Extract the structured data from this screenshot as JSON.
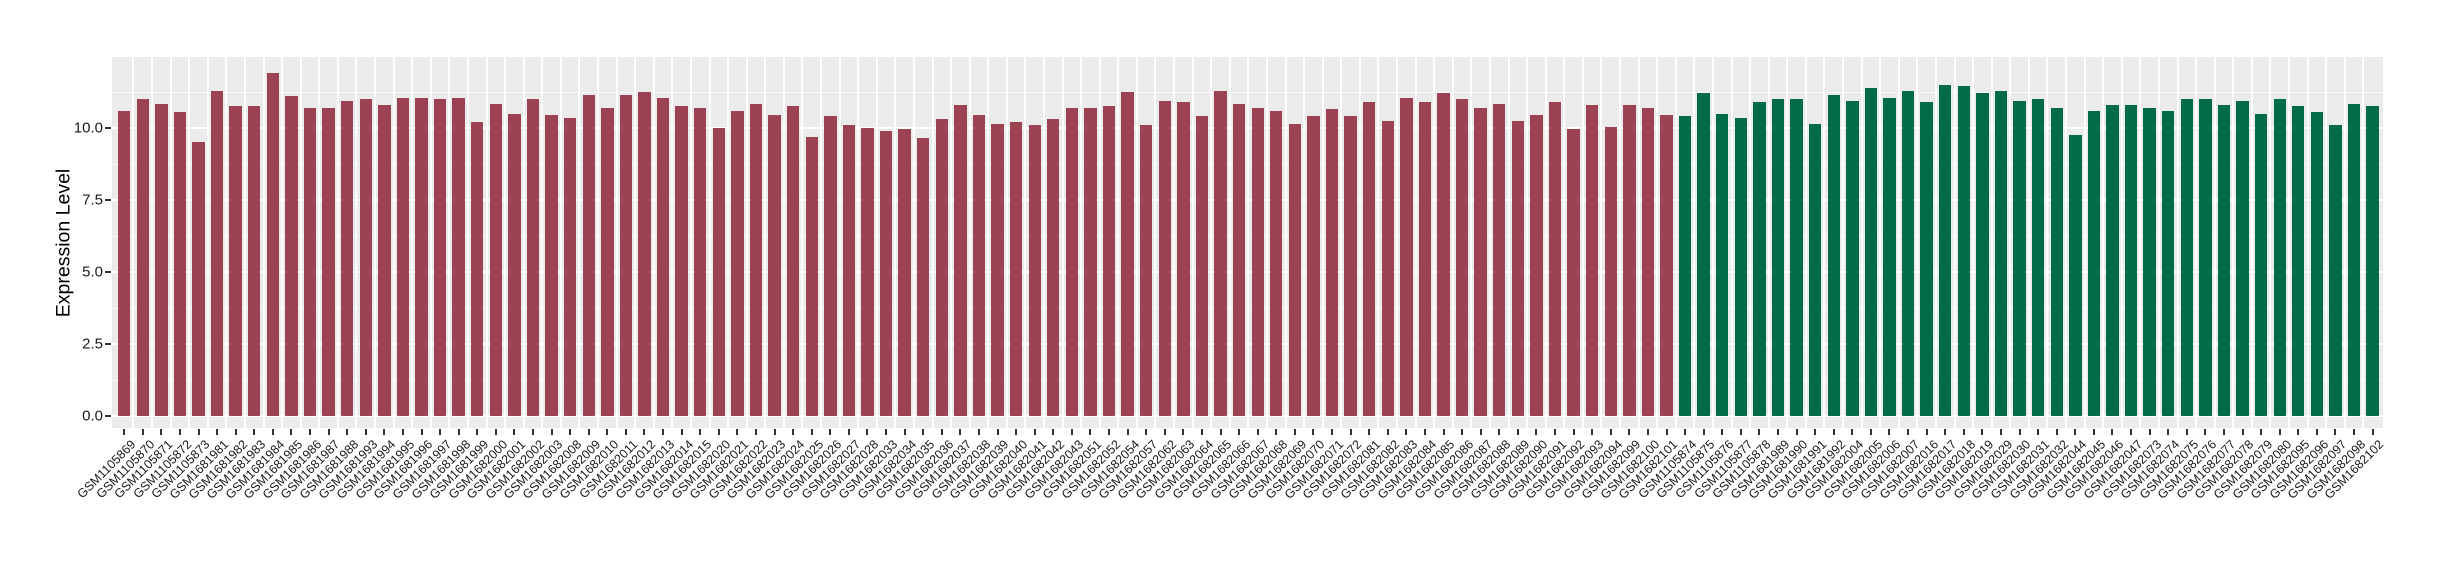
{
  "figure": {
    "kind": "expression-bar-plot",
    "background": "#ffffff",
    "panel_background": "#EBEBEB",
    "gridline_color": "#ffffff",
    "tick_color": "#333333",
    "text_color": "#1a1a1a"
  },
  "chart_data": {
    "type": "bar",
    "title": "",
    "xlabel": "",
    "ylabel": "Expression Level",
    "ylim": [
      0,
      12.5
    ],
    "grid": "on",
    "legend": "none",
    "yticks": [
      0,
      2.5,
      5.0,
      7.5,
      10.0
    ],
    "ytick_labels": [
      "0.0",
      "2.5",
      "5.0",
      "7.5",
      "10.0"
    ],
    "yticks_minor": [
      1.25,
      3.75,
      6.25,
      8.75,
      11.25,
      12.5
    ],
    "x_tick_label_angle_deg": 45,
    "series": [
      {
        "name": "maroon-group",
        "color": "#9B4352",
        "categories": [
          "GSM1105869",
          "GSM1105870",
          "GSM1105871",
          "GSM1105872",
          "GSM1105873",
          "GSM1681981",
          "GSM1681982",
          "GSM1681983",
          "GSM1681984",
          "GSM1681985",
          "GSM1681986",
          "GSM1681987",
          "GSM1681988",
          "GSM1681993",
          "GSM1681994",
          "GSM1681995",
          "GSM1681996",
          "GSM1681997",
          "GSM1681998",
          "GSM1681999",
          "GSM1682000",
          "GSM1682001",
          "GSM1682002",
          "GSM1682003",
          "GSM1682008",
          "GSM1682009",
          "GSM1682010",
          "GSM1682011",
          "GSM1682012",
          "GSM1682013",
          "GSM1682014",
          "GSM1682015",
          "GSM1682020",
          "GSM1682021",
          "GSM1682022",
          "GSM1682023",
          "GSM1682024",
          "GSM1682025",
          "GSM1682026",
          "GSM1682027",
          "GSM1682028",
          "GSM1682033",
          "GSM1682034",
          "GSM1682035",
          "GSM1682036",
          "GSM1682037",
          "GSM1682038",
          "GSM1682039",
          "GSM1682040",
          "GSM1682041",
          "GSM1682042",
          "GSM1682043",
          "GSM1682051",
          "GSM1682052",
          "GSM1682054",
          "GSM1682057",
          "GSM1682062",
          "GSM1682063",
          "GSM1682064",
          "GSM1682065",
          "GSM1682066",
          "GSM1682067",
          "GSM1682068",
          "GSM1682069",
          "GSM1682070",
          "GSM1682071",
          "GSM1682072",
          "GSM1682081",
          "GSM1682082",
          "GSM1682083",
          "GSM1682084",
          "GSM1682085",
          "GSM1682086",
          "GSM1682087",
          "GSM1682088",
          "GSM1682089",
          "GSM1682090",
          "GSM1682091",
          "GSM1682092",
          "GSM1682093",
          "GSM1682094",
          "GSM1682099",
          "GSM1682100",
          "GSM1682101"
        ],
        "values": [
          10.6,
          11.0,
          10.85,
          10.55,
          9.5,
          11.3,
          10.75,
          10.75,
          11.9,
          11.1,
          10.7,
          10.7,
          10.95,
          11.0,
          10.8,
          11.05,
          11.05,
          11.0,
          11.05,
          10.2,
          10.85,
          10.5,
          11.0,
          10.45,
          10.35,
          11.15,
          10.7,
          11.15,
          11.25,
          11.05,
          10.75,
          10.7,
          10.0,
          10.6,
          10.85,
          10.45,
          10.75,
          9.7,
          10.4,
          10.1,
          10.0,
          9.9,
          9.95,
          9.65,
          10.3,
          10.8,
          10.45,
          10.15,
          10.2,
          10.1,
          10.3,
          10.7,
          10.7,
          10.75,
          11.25,
          10.1,
          10.95,
          10.9,
          10.4,
          11.3,
          10.85,
          10.7,
          10.6,
          10.15,
          10.4,
          10.65,
          10.4,
          10.9,
          10.25,
          11.05,
          10.9,
          11.2,
          11.0,
          10.7,
          10.85,
          10.25,
          10.45,
          10.9,
          9.95,
          10.8,
          10.05,
          10.8,
          10.7,
          10.45
        ]
      },
      {
        "name": "green-group",
        "color": "#046B49",
        "categories": [
          "GSM1105874",
          "GSM1105875",
          "GSM1105876",
          "GSM1105877",
          "GSM1105878",
          "GSM1681989",
          "GSM1681990",
          "GSM1681991",
          "GSM1681992",
          "GSM1682004",
          "GSM1682005",
          "GSM1682006",
          "GSM1682007",
          "GSM1682016",
          "GSM1682017",
          "GSM1682018",
          "GSM1682019",
          "GSM1682029",
          "GSM1682030",
          "GSM1682031",
          "GSM1682032",
          "GSM1682044",
          "GSM1682045",
          "GSM1682046",
          "GSM1682047",
          "GSM1682073",
          "GSM1682074",
          "GSM1682075",
          "GSM1682076",
          "GSM1682077",
          "GSM1682078",
          "GSM1682079",
          "GSM1682080",
          "GSM1682095",
          "GSM1682096",
          "GSM1682097",
          "GSM1682098",
          "GSM1682102"
        ],
        "values": [
          10.4,
          11.2,
          10.5,
          10.35,
          10.9,
          11.0,
          11.0,
          10.15,
          11.15,
          10.95,
          11.4,
          11.05,
          11.3,
          10.9,
          11.5,
          11.45,
          11.2,
          11.3,
          10.95,
          11.0,
          10.7,
          9.75,
          10.6,
          10.8,
          10.8,
          10.7,
          10.6,
          11.0,
          11.0,
          10.8,
          10.95,
          10.5,
          11.0,
          10.75,
          10.55,
          10.1,
          10.85,
          10.75
        ]
      }
    ]
  }
}
